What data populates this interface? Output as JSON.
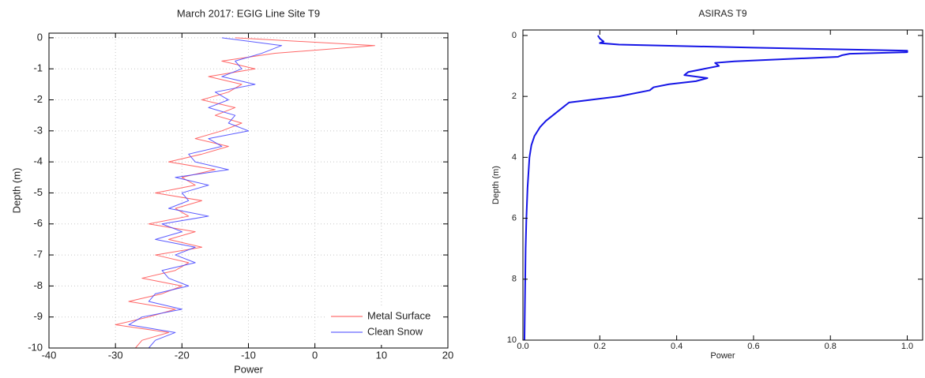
{
  "chart_data": [
    {
      "type": "line",
      "title": "March 2017: EGIG Line Site T9",
      "xlabel": "Power",
      "ylabel": "Depth (m)",
      "y": [
        0,
        -0.25,
        -0.5,
        -0.75,
        -1,
        -1.25,
        -1.5,
        -1.75,
        -2,
        -2.25,
        -2.5,
        -2.75,
        -3,
        -3.25,
        -3.5,
        -3.75,
        -4,
        -4.25,
        -4.5,
        -4.75,
        -5,
        -5.25,
        -5.5,
        -5.75,
        -6,
        -6.25,
        -6.5,
        -6.75,
        -7,
        -7.25,
        -7.5,
        -7.75,
        -8,
        -8.25,
        -8.5,
        -8.75,
        -9,
        -9.25,
        -9.5,
        -9.75,
        -10
      ],
      "series": [
        {
          "name": "Metal Surface",
          "color": "#ff4d4d",
          "values": [
            -12,
            9,
            -6,
            -14,
            -9,
            -16,
            -11,
            -13,
            -17,
            -12,
            -15,
            -11,
            -14,
            -18,
            -13,
            -17,
            -22,
            -15,
            -20,
            -18,
            -24,
            -17,
            -21,
            -19,
            -25,
            -18,
            -22,
            -17,
            -24,
            -19,
            -21,
            -26,
            -20,
            -23,
            -28,
            -21,
            -25,
            -30,
            -22,
            -26,
            -27
          ]
        },
        {
          "name": "Clean Snow",
          "color": "#4040ff",
          "values": [
            -14,
            -5,
            -8,
            -12,
            -11,
            -14,
            -9,
            -15,
            -13,
            -16,
            -12,
            -13,
            -10,
            -16,
            -14,
            -19,
            -18,
            -13,
            -21,
            -16,
            -20,
            -19,
            -22,
            -16,
            -23,
            -20,
            -24,
            -18,
            -21,
            -18,
            -23,
            -22,
            -19,
            -24,
            -25,
            -20,
            -26,
            -28,
            -21,
            -24,
            -25
          ]
        }
      ],
      "xlim": [
        -40,
        20
      ],
      "xticks": [
        -40,
        -30,
        -20,
        -10,
        0,
        10,
        20
      ],
      "ylim": [
        -10,
        0.15
      ],
      "yticks": [
        -10,
        -9,
        -8,
        -7,
        -6,
        -5,
        -4,
        -3,
        -2,
        -1,
        0
      ],
      "grid": true,
      "legend": "lower right",
      "y_inverted": false
    },
    {
      "type": "line",
      "title": "ASIRAS T9",
      "xlabel": "Power",
      "ylabel": "Depth (m)",
      "y": [
        0,
        0.1,
        0.2,
        0.25,
        0.3,
        0.4,
        0.5,
        0.55,
        0.6,
        0.65,
        0.7,
        0.85,
        0.9,
        1.0,
        1.1,
        1.2,
        1.3,
        1.4,
        1.5,
        1.6,
        1.7,
        1.8,
        2.0,
        2.2,
        2.5,
        2.8,
        3.0,
        3.3,
        3.6,
        4.0,
        5.0,
        6.0,
        7.0,
        8.0,
        9.0,
        10.0
      ],
      "series": [
        {
          "name": "ASIRAS T9",
          "color": "#1515e6",
          "values": [
            0.195,
            0.2,
            0.21,
            0.2,
            0.25,
            0.6,
            1.0,
            1.0,
            0.85,
            0.83,
            0.82,
            0.55,
            0.5,
            0.51,
            0.47,
            0.43,
            0.42,
            0.48,
            0.45,
            0.38,
            0.34,
            0.33,
            0.25,
            0.12,
            0.09,
            0.06,
            0.045,
            0.03,
            0.022,
            0.017,
            0.012,
            0.009,
            0.007,
            0.006,
            0.005,
            0.004
          ]
        }
      ],
      "xlim": [
        0,
        1.04
      ],
      "xticks": [
        {
          "value": 0,
          "label": "0.0"
        },
        {
          "value": 0.2,
          "label": "0.2"
        },
        {
          "value": 0.4,
          "label": "0.4"
        },
        {
          "value": 0.6,
          "label": "0.6"
        },
        {
          "value": 0.8,
          "label": "0.8"
        },
        {
          "value": 1,
          "label": "1.0"
        }
      ],
      "ylim": [
        -0.18,
        10
      ],
      "yticks": [
        0,
        2,
        4,
        6,
        8,
        10
      ],
      "grid": false,
      "legend": "none",
      "y_inverted": true
    }
  ]
}
